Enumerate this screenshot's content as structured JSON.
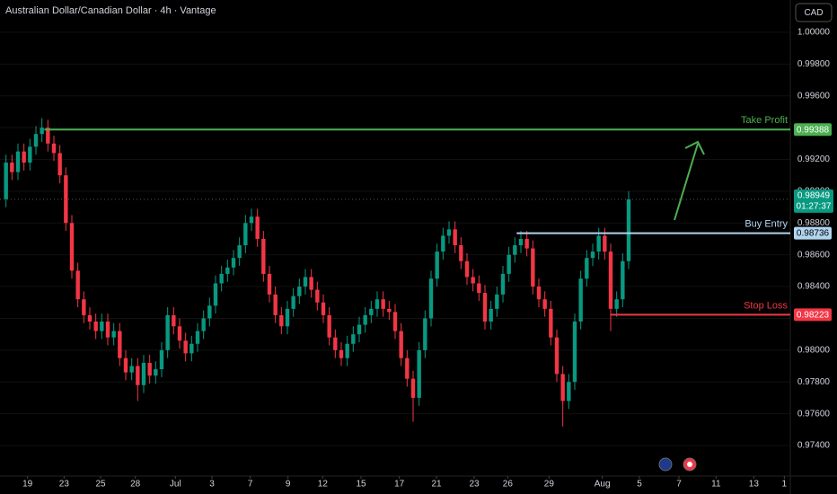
{
  "chart_data": {
    "type": "candlestick",
    "title": "Australian Dollar/Canadian Dollar · 4h · Vantage",
    "currency": "CAD",
    "up_color": "#089981",
    "down_color": "#f23645",
    "open": [
      0.9895,
      0.9918,
      0.9912,
      0.9925,
      0.9918,
      0.9928,
      0.9936,
      0.994,
      0.993,
      0.9924,
      0.991,
      0.988,
      0.985,
      0.9832,
      0.9822,
      0.9818,
      0.9812,
      0.9818,
      0.9808,
      0.9812,
      0.9795,
      0.9786,
      0.979,
      0.9778,
      0.9792,
      0.9784,
      0.9788,
      0.98,
      0.9822,
      0.9815,
      0.9806,
      0.9798,
      0.9804,
      0.9812,
      0.982,
      0.9828,
      0.9842,
      0.9848,
      0.9852,
      0.9858,
      0.9866,
      0.988,
      0.9884,
      0.987,
      0.9848,
      0.9835,
      0.9822,
      0.9815,
      0.9826,
      0.9834,
      0.984,
      0.9846,
      0.9838,
      0.983,
      0.9822,
      0.9808,
      0.98,
      0.9795,
      0.9804,
      0.981,
      0.9816,
      0.9822,
      0.9826,
      0.9832,
      0.9826,
      0.9824,
      0.9812,
      0.9795,
      0.9782,
      0.977,
      0.98,
      0.982,
      0.9845,
      0.9862,
      0.9872,
      0.9876,
      0.9866,
      0.9856,
      0.9846,
      0.9842,
      0.9836,
      0.9818,
      0.9826,
      0.9835,
      0.9848,
      0.986,
      0.9866,
      0.987,
      0.9864,
      0.984,
      0.9832,
      0.9826,
      0.9808,
      0.9785,
      0.9768,
      0.978,
      0.9818,
      0.9845,
      0.9858,
      0.9862,
      0.9872,
      0.9862,
      0.9826,
      0.9832,
      0.9856
    ],
    "high": [
      0.9923,
      0.9923,
      0.993,
      0.993,
      0.9933,
      0.9941,
      0.9946,
      0.9945,
      0.9935,
      0.9929,
      0.9915,
      0.9885,
      0.9855,
      0.9837,
      0.9827,
      0.9823,
      0.9823,
      0.9823,
      0.9817,
      0.9817,
      0.98,
      0.9795,
      0.9795,
      0.9797,
      0.9797,
      0.9793,
      0.9805,
      0.9827,
      0.9827,
      0.982,
      0.9811,
      0.9809,
      0.9817,
      0.9825,
      0.9833,
      0.9847,
      0.9853,
      0.9857,
      0.9863,
      0.9871,
      0.9885,
      0.9889,
      0.9889,
      0.9875,
      0.9853,
      0.984,
      0.9827,
      0.9831,
      0.9839,
      0.9845,
      0.9851,
      0.9851,
      0.9843,
      0.9835,
      0.9827,
      0.9813,
      0.9805,
      0.9809,
      0.9815,
      0.9821,
      0.9827,
      0.9831,
      0.9837,
      0.9837,
      0.9831,
      0.9829,
      0.9817,
      0.98,
      0.9787,
      0.9805,
      0.9825,
      0.985,
      0.9867,
      0.9877,
      0.9881,
      0.9881,
      0.9871,
      0.9861,
      0.9851,
      0.9847,
      0.9841,
      0.9831,
      0.984,
      0.9853,
      0.9865,
      0.9871,
      0.9875,
      0.9875,
      0.9869,
      0.9845,
      0.9837,
      0.9831,
      0.9813,
      0.979,
      0.9785,
      0.9823,
      0.985,
      0.9863,
      0.9867,
      0.9877,
      0.9877,
      0.9867,
      0.9837,
      0.9861,
      0.99
    ],
    "low": [
      0.989,
      0.9907,
      0.9907,
      0.9913,
      0.9913,
      0.9923,
      0.9931,
      0.9925,
      0.9919,
      0.9905,
      0.9875,
      0.9845,
      0.9827,
      0.9817,
      0.9813,
      0.9807,
      0.9807,
      0.9803,
      0.9803,
      0.979,
      0.9781,
      0.9781,
      0.9768,
      0.9773,
      0.9779,
      0.9779,
      0.9783,
      0.9795,
      0.981,
      0.9801,
      0.9793,
      0.9793,
      0.9799,
      0.9807,
      0.9815,
      0.9823,
      0.9837,
      0.9843,
      0.9847,
      0.9853,
      0.9861,
      0.9875,
      0.9865,
      0.9843,
      0.983,
      0.9817,
      0.981,
      0.981,
      0.9821,
      0.9829,
      0.9835,
      0.9833,
      0.9825,
      0.9817,
      0.9803,
      0.9795,
      0.979,
      0.979,
      0.9799,
      0.9805,
      0.9811,
      0.9817,
      0.9821,
      0.9821,
      0.9819,
      0.9807,
      0.979,
      0.9777,
      0.9755,
      0.9765,
      0.9795,
      0.9815,
      0.984,
      0.9857,
      0.9867,
      0.9861,
      0.9851,
      0.9841,
      0.9837,
      0.9831,
      0.9813,
      0.9813,
      0.9821,
      0.983,
      0.9843,
      0.9855,
      0.9861,
      0.9859,
      0.9835,
      0.9827,
      0.9821,
      0.9803,
      0.978,
      0.9752,
      0.9763,
      0.9775,
      0.9813,
      0.984,
      0.9853,
      0.9857,
      0.9857,
      0.9812,
      0.9821,
      0.9827,
      0.9851
    ],
    "close": [
      0.9918,
      0.9912,
      0.9925,
      0.9918,
      0.9928,
      0.9936,
      0.994,
      0.993,
      0.9924,
      0.991,
      0.988,
      0.985,
      0.9832,
      0.9822,
      0.9818,
      0.9812,
      0.9818,
      0.9808,
      0.9812,
      0.9795,
      0.9786,
      0.979,
      0.9778,
      0.9792,
      0.9784,
      0.9788,
      0.98,
      0.9822,
      0.9815,
      0.9806,
      0.9798,
      0.9804,
      0.9812,
      0.982,
      0.9828,
      0.9842,
      0.9848,
      0.9852,
      0.9858,
      0.9866,
      0.988,
      0.9884,
      0.987,
      0.9848,
      0.9835,
      0.9822,
      0.9815,
      0.9826,
      0.9834,
      0.984,
      0.9846,
      0.9838,
      0.983,
      0.9822,
      0.9808,
      0.98,
      0.9795,
      0.9804,
      0.981,
      0.9816,
      0.9822,
      0.9826,
      0.9832,
      0.9826,
      0.9824,
      0.9812,
      0.9795,
      0.9782,
      0.977,
      0.98,
      0.982,
      0.9845,
      0.9862,
      0.9872,
      0.9876,
      0.9866,
      0.9856,
      0.9846,
      0.9842,
      0.9836,
      0.9818,
      0.9826,
      0.9835,
      0.9848,
      0.986,
      0.9866,
      0.987,
      0.9864,
      0.984,
      0.9832,
      0.9826,
      0.9808,
      0.9785,
      0.9768,
      0.978,
      0.9818,
      0.9845,
      0.9858,
      0.9862,
      0.9872,
      0.9862,
      0.9826,
      0.9832,
      0.9856,
      0.98949
    ],
    "ylim": [
      0.97208,
      1.00203
    ],
    "yticks": [
      {
        "value": 1.0,
        "label": "1.00000"
      },
      {
        "value": 0.998,
        "label": "0.99800"
      },
      {
        "value": 0.996,
        "label": "0.99600"
      },
      {
        "value": 0.994,
        "label": "0.99400"
      },
      {
        "value": 0.992,
        "label": "0.99200"
      },
      {
        "value": 0.99,
        "label": "0.99000"
      },
      {
        "value": 0.988,
        "label": "0.98800"
      },
      {
        "value": 0.986,
        "label": "0.98600"
      },
      {
        "value": 0.984,
        "label": "0.98400"
      },
      {
        "value": 0.982,
        "label": "0.98200"
      },
      {
        "value": 0.98,
        "label": "0.98000"
      },
      {
        "value": 0.978,
        "label": "0.97800"
      },
      {
        "value": 0.976,
        "label": "0.97600"
      },
      {
        "value": 0.974,
        "label": "0.97400"
      }
    ],
    "xlim": [
      -1,
      131
    ],
    "xticks": [
      {
        "value": 3.6,
        "label": "19"
      },
      {
        "value": 9.7,
        "label": "23"
      },
      {
        "value": 15.8,
        "label": "25"
      },
      {
        "value": 21.6,
        "label": "28"
      },
      {
        "value": 28.3,
        "label": "Jul"
      },
      {
        "value": 34.4,
        "label": "3"
      },
      {
        "value": 40.8,
        "label": "7"
      },
      {
        "value": 47.1,
        "label": "9"
      },
      {
        "value": 52.9,
        "label": "12"
      },
      {
        "value": 59.3,
        "label": "15"
      },
      {
        "value": 65.7,
        "label": "17"
      },
      {
        "value": 71.9,
        "label": "21"
      },
      {
        "value": 78.2,
        "label": "23"
      },
      {
        "value": 83.8,
        "label": "26"
      },
      {
        "value": 90.7,
        "label": "29"
      },
      {
        "value": 99.6,
        "label": "Aug"
      },
      {
        "value": 105.8,
        "label": "5"
      },
      {
        "value": 112.4,
        "label": "7"
      },
      {
        "value": 118.6,
        "label": "11"
      },
      {
        "value": 124.9,
        "label": "13"
      },
      {
        "value": 130.0,
        "label": "1"
      }
    ],
    "levels": [
      {
        "name": "Take Profit",
        "value": 0.99388,
        "color": "#4caf50",
        "from": 6.4
      },
      {
        "name": "Buy Entry",
        "value": 0.98736,
        "color": "#b2d5f0",
        "from": 85.3
      },
      {
        "name": "Stop Loss",
        "value": 0.98223,
        "color": "#f23645",
        "from": 100.9
      }
    ],
    "last_price": {
      "value": 0.98949,
      "countdown": "01:27:37",
      "color": "#089981"
    }
  }
}
